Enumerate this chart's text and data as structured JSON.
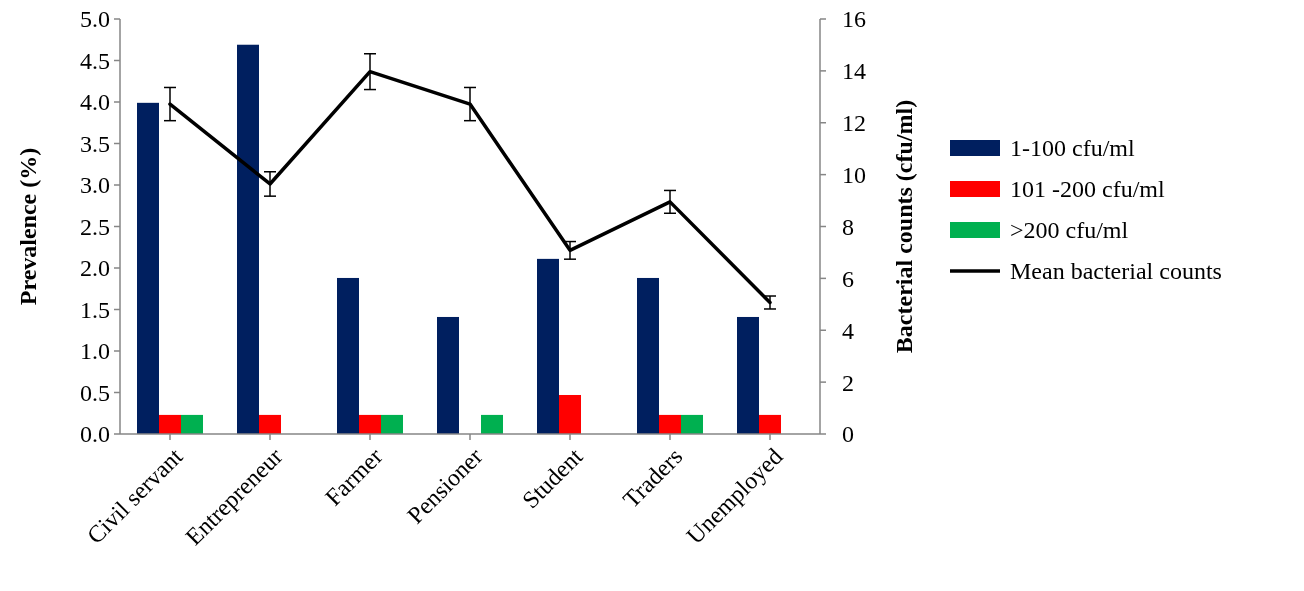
{
  "chart_data": {
    "type": "bar",
    "categories": [
      "Civil servant",
      "Entrepreneur",
      "Farmer",
      "Pensioner",
      "Student",
      "Traders",
      "Unemployed"
    ],
    "ylabel": "Prevalence (%)",
    "y2label": "Bacterial counts (cfu/ml)",
    "ylim": [
      0,
      5
    ],
    "yticks": [
      {
        "value": 0,
        "label": "0.0"
      },
      0.5,
      {
        "value": 1,
        "label": "1.0"
      },
      1.5,
      {
        "value": 2,
        "label": "2.0"
      },
      2.5,
      {
        "value": 3,
        "label": "3.0"
      },
      3.5,
      {
        "value": 4,
        "label": "4.0"
      },
      4.5,
      {
        "value": 5,
        "label": "5.0"
      }
    ],
    "y2lim": [
      0,
      16
    ],
    "y2ticks": [
      0,
      2,
      4,
      6,
      8,
      10,
      12,
      14,
      16
    ],
    "legend": "right",
    "grid": false,
    "series": [
      {
        "name": "1-100 cfu/ml",
        "color": "#001f5f",
        "values": [
          3.99,
          4.69,
          1.88,
          1.41,
          2.11,
          1.88,
          1.41
        ]
      },
      {
        "name": "101 -200 cfu/ml",
        "color": "#ff0000",
        "values": [
          0.23,
          0.23,
          0.23,
          null,
          0.47,
          0.23,
          0.23
        ]
      },
      {
        "name": ">200 cfu/ml",
        "color": "#00b050",
        "values": [
          0.23,
          null,
          0.23,
          0.23,
          null,
          0.23,
          null
        ]
      },
      {
        "name": "Mean bacterial counts",
        "type": "line",
        "axis": "y2",
        "color": "#000000",
        "marker": "none",
        "values": [
          12.72,
          9.64,
          13.97,
          12.72,
          7.08,
          8.95,
          5.07
        ],
        "errors": [
          0.64,
          0.47,
          0.69,
          0.64,
          0.34,
          0.44,
          0.25
        ]
      }
    ]
  }
}
